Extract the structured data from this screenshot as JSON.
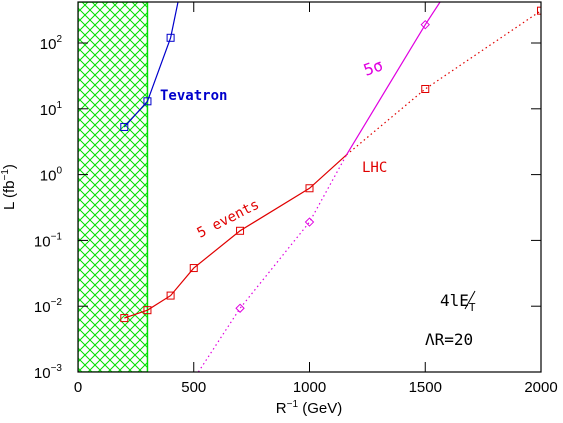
{
  "chart_data": {
    "type": "line",
    "log_y": true,
    "xlim": [
      0,
      2000
    ],
    "xticks": [
      0,
      500,
      1000,
      1500,
      2000
    ],
    "ylim": [
      0.001,
      420
    ],
    "yticks": [
      {
        "value": 0.001,
        "label": "10",
        "exponent": "−3"
      },
      {
        "value": 0.01,
        "label": "10",
        "exponent": "−2"
      },
      {
        "value": 0.1,
        "label": "10",
        "exponent": "−1"
      },
      {
        "value": 1,
        "label": "10",
        "exponent": "0"
      },
      {
        "value": 10,
        "label": "10",
        "exponent": "1"
      },
      {
        "value": 100,
        "label": "10",
        "exponent": "2"
      }
    ],
    "x_label": {
      "text": "R",
      "superscript": "−1",
      "suffix": " (GeV)"
    },
    "y_label": {
      "text": "L (fb",
      "superscript": "−1",
      "suffix": ")"
    },
    "shaded_region": {
      "x": [
        0,
        300
      ],
      "color": "#00e000"
    },
    "series": [
      {
        "color": "#0000cc",
        "dash": "solid",
        "marker": "square",
        "x": [
          200,
          300,
          400,
          432
        ],
        "values": [
          5.3,
          13,
          120,
          420
        ],
        "markers": [
          true,
          true,
          true,
          false
        ]
      },
      {
        "color": "#e00000",
        "dash": "solid",
        "marker": "square",
        "x": [
          200,
          300,
          400,
          500,
          700,
          1000,
          1160
        ],
        "values": [
          0.0066,
          0.0087,
          0.0145,
          0.038,
          0.14,
          0.62,
          2.0
        ],
        "markers": [
          true,
          true,
          true,
          true,
          true,
          true,
          false
        ]
      },
      {
        "color": "#e00000",
        "dash": "dotted",
        "marker": "square",
        "x": [
          1160,
          1500,
          2000
        ],
        "values": [
          2.0,
          20,
          310
        ],
        "markers": [
          false,
          true,
          true
        ]
      },
      {
        "color": "#e000e0",
        "dash": "dotted",
        "marker": "diamond",
        "x": [
          520,
          700,
          1000,
          1160
        ],
        "values": [
          0.001,
          0.0093,
          0.19,
          2.0
        ],
        "markers": [
          false,
          true,
          true,
          false
        ]
      },
      {
        "color": "#e000e0",
        "dash": "solid",
        "marker": "diamond",
        "x": [
          1160,
          1500,
          1564
        ],
        "values": [
          2.0,
          190,
          420
        ],
        "markers": [
          false,
          true,
          false
        ]
      }
    ],
    "annotations": {
      "tevatron": "Tevatron",
      "five_sigma": "5σ",
      "lhc": "LHC",
      "five_events": "5 events",
      "lambda_r": "ΛR=20"
    },
    "signature": {
      "text": "4l",
      "symbol": "E",
      "subscript": "T"
    }
  }
}
